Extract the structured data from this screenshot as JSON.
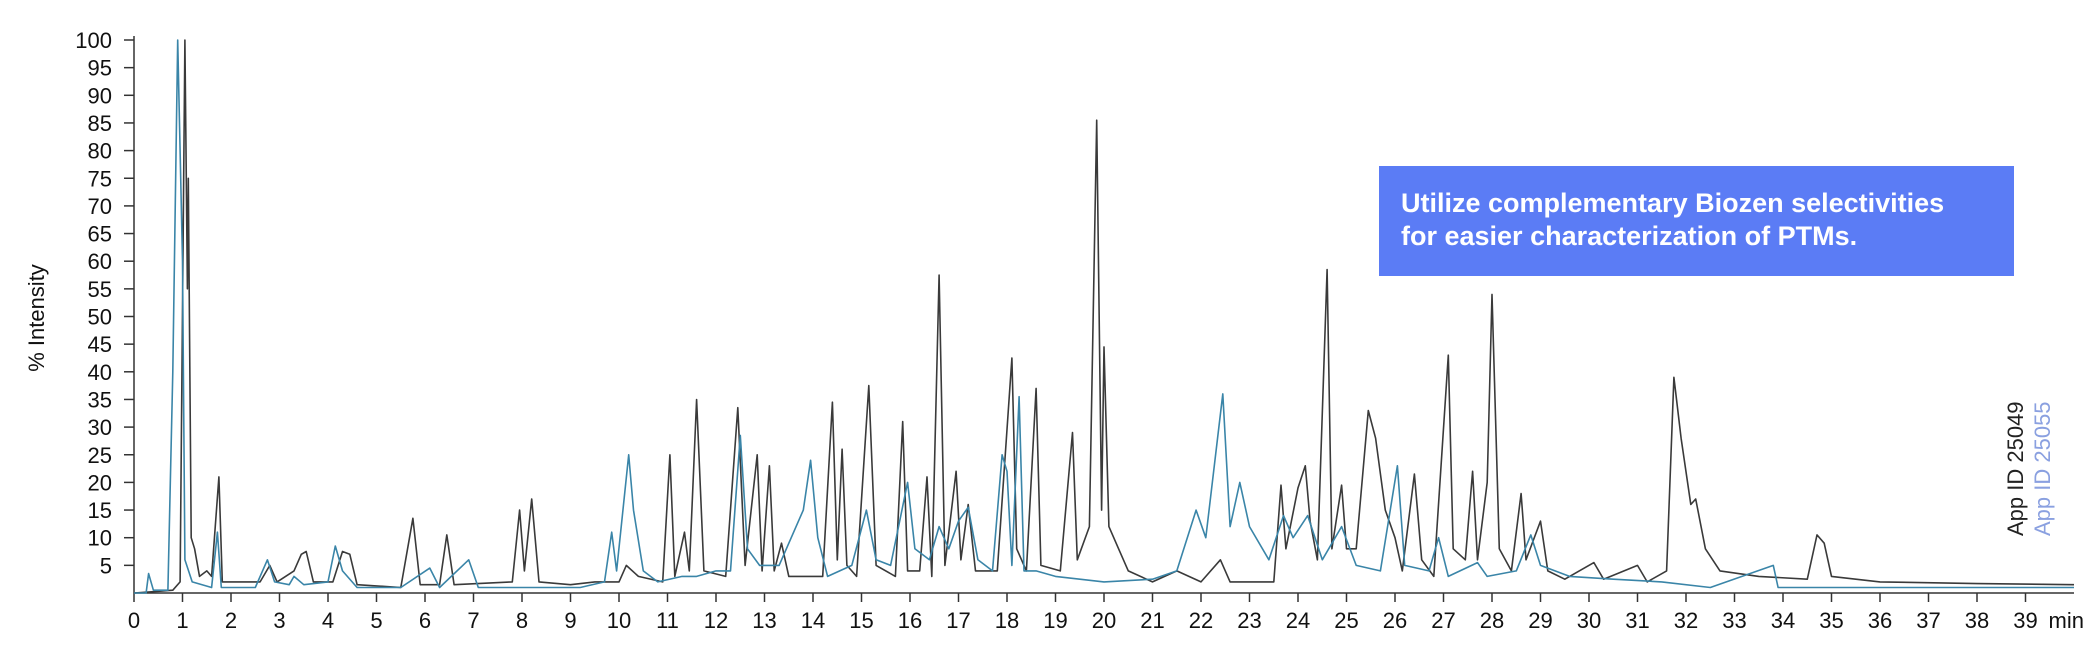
{
  "chart_data": {
    "type": "line",
    "ylabel": "% Intensity",
    "xlabel": "min",
    "annotation": [
      "Utilize complementary Biozen selectivities",
      "for easier characterization of PTMs."
    ],
    "xlim": [
      0,
      40
    ],
    "xticks": [
      0,
      1,
      2,
      3,
      4,
      5,
      6,
      7,
      8,
      9,
      10,
      11,
      12,
      13,
      14,
      15,
      16,
      17,
      18,
      19,
      20,
      21,
      22,
      23,
      24,
      25,
      26,
      27,
      28,
      29,
      30,
      31,
      32,
      33,
      34,
      35,
      36,
      37,
      38,
      39
    ],
    "ylim": [
      0,
      100
    ],
    "yticks": [
      5,
      10,
      15,
      20,
      25,
      30,
      35,
      40,
      45,
      50,
      55,
      60,
      65,
      70,
      75,
      80,
      85,
      90,
      95,
      100
    ],
    "series": [
      {
        "name": "App ID 25049",
        "color": "#3a3a3a",
        "label_color": "#222222",
        "x": [
          0,
          0.5,
          0.8,
          0.95,
          1.05,
          1.1,
          1.12,
          1.18,
          1.25,
          1.35,
          1.5,
          1.6,
          1.75,
          1.82,
          2.2,
          2.6,
          2.8,
          2.95,
          3.3,
          3.45,
          3.55,
          3.7,
          4.1,
          4.3,
          4.45,
          4.6,
          5.5,
          5.75,
          5.9,
          6.3,
          6.45,
          6.6,
          7.8,
          7.95,
          8.05,
          8.2,
          8.35,
          9,
          9.5,
          10,
          10.15,
          10.4,
          10.9,
          11.05,
          11.15,
          11.35,
          11.45,
          11.6,
          11.75,
          12.2,
          12.45,
          12.6,
          12.85,
          12.95,
          13.1,
          13.2,
          13.35,
          13.5,
          14.2,
          14.4,
          14.5,
          14.6,
          14.7,
          14.9,
          15.15,
          15.3,
          15.7,
          15.85,
          15.95,
          16.2,
          16.35,
          16.45,
          16.6,
          16.72,
          16.95,
          17.05,
          17.2,
          17.35,
          17.8,
          18.1,
          18.2,
          18.4,
          18.6,
          18.7,
          19.1,
          19.35,
          19.45,
          19.7,
          19.85,
          19.95,
          20.0,
          20.1,
          20.3,
          20.5,
          21,
          21.5,
          22,
          22.4,
          22.6,
          23.5,
          23.65,
          23.75,
          24.0,
          24.15,
          24.25,
          24.4,
          24.6,
          24.7,
          24.9,
          25.0,
          25.2,
          25.45,
          25.6,
          25.8,
          26.0,
          26.15,
          26.4,
          26.55,
          26.8,
          27.1,
          27.2,
          27.45,
          27.6,
          27.7,
          27.9,
          28.0,
          28.15,
          28.4,
          28.6,
          28.7,
          29.0,
          29.15,
          29.5,
          30.1,
          30.3,
          31.0,
          31.2,
          31.6,
          31.75,
          31.9,
          32.1,
          32.2,
          32.4,
          32.7,
          33.5,
          34.5,
          34.7,
          34.85,
          35.0,
          36,
          38,
          40
        ],
        "values": [
          0,
          0.3,
          0.5,
          2,
          100,
          55,
          75,
          10,
          8,
          3,
          4,
          3,
          21,
          2,
          2,
          2,
          5,
          2,
          4,
          7,
          7.5,
          2,
          2,
          7.5,
          7,
          1.5,
          1,
          13.5,
          1.5,
          1.5,
          10.5,
          1.5,
          2,
          15,
          4,
          17,
          2,
          1.5,
          2,
          2,
          5,
          3,
          2,
          25,
          3,
          11,
          4,
          35,
          4,
          3,
          33.5,
          5,
          25,
          4,
          23,
          4,
          9,
          3,
          3,
          34.5,
          6,
          26,
          5,
          3,
          37.5,
          5,
          3,
          31,
          4,
          4,
          21,
          3,
          57.5,
          5,
          22,
          6,
          16,
          4,
          4,
          42.5,
          8,
          4,
          37,
          5,
          4,
          29,
          6,
          12,
          85.5,
          15,
          44.5,
          12,
          8,
          4,
          2,
          4,
          2,
          6,
          2,
          2,
          19.5,
          8,
          19,
          23,
          13,
          6,
          58.5,
          8,
          19.5,
          8,
          8,
          33,
          28,
          15,
          10,
          4,
          21.5,
          6,
          3,
          43,
          8,
          6,
          22,
          6,
          20,
          54,
          8,
          4,
          18,
          6,
          13,
          4,
          2.5,
          5.5,
          2.5,
          5,
          2,
          4,
          39,
          28,
          16,
          17,
          8,
          4,
          3,
          2.5,
          10.5,
          9,
          3,
          2,
          1.7,
          1.5
        ]
      },
      {
        "name": "App ID 25055",
        "color": "#3a85a8",
        "label_color": "#8aa0e0",
        "x": [
          0,
          0.25,
          0.3,
          0.4,
          0.7,
          0.8,
          0.9,
          1.0,
          1.05,
          1.2,
          1.6,
          1.72,
          1.8,
          2.5,
          2.75,
          2.9,
          3.2,
          3.3,
          3.5,
          4.0,
          4.15,
          4.3,
          4.6,
          5.5,
          6.1,
          6.3,
          6.9,
          7.1,
          8.0,
          9.2,
          9.7,
          9.85,
          9.95,
          10.2,
          10.3,
          10.5,
          10.8,
          11.3,
          11.6,
          12.0,
          12.3,
          12.5,
          12.65,
          12.9,
          13.3,
          13.8,
          13.95,
          14.1,
          14.3,
          14.8,
          15.1,
          15.3,
          15.6,
          15.95,
          16.1,
          16.4,
          16.6,
          16.8,
          17.0,
          17.2,
          17.4,
          17.7,
          17.9,
          18.0,
          18.1,
          18.25,
          18.35,
          18.6,
          19.0,
          19.5,
          20,
          21.0,
          21.5,
          21.9,
          22.1,
          22.45,
          22.6,
          22.8,
          23.0,
          23.4,
          23.7,
          23.9,
          24.2,
          24.5,
          24.9,
          25.2,
          25.7,
          26.05,
          26.2,
          26.7,
          26.9,
          27.1,
          27.7,
          27.9,
          28.5,
          28.8,
          29.0,
          29.6,
          30.5,
          31.5,
          32.5,
          33.8,
          33.9,
          35,
          40
        ],
        "values": [
          0,
          0,
          3.5,
          0.5,
          0.5,
          40,
          100,
          60,
          6,
          2,
          1,
          11,
          1,
          1,
          6,
          2,
          1.5,
          3,
          1.5,
          2,
          8.5,
          4,
          1,
          1,
          4.5,
          1,
          6,
          1,
          1,
          1,
          2,
          11,
          4,
          25,
          15,
          4,
          2,
          3,
          3,
          4,
          4,
          28.5,
          8,
          5,
          5,
          15,
          24,
          10,
          3,
          5,
          15,
          6,
          5,
          20,
          8,
          6,
          12,
          8,
          13,
          15.5,
          6,
          4,
          25,
          22,
          5,
          35.5,
          4,
          4,
          3,
          2.5,
          2,
          2.5,
          4,
          15,
          10,
          36,
          12,
          20,
          12,
          6,
          14,
          10,
          14,
          6,
          12,
          5,
          4,
          23,
          5,
          4,
          10,
          3,
          5.5,
          3,
          4,
          10.5,
          5,
          3,
          2.5,
          2,
          1,
          5,
          1,
          1,
          1
        ]
      }
    ]
  }
}
